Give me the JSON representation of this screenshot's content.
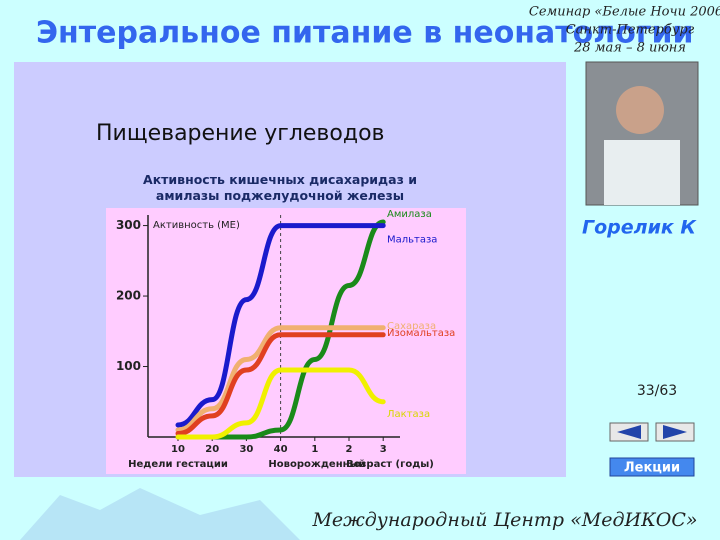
{
  "slide": {
    "title": "Энтеральное питание в неонатологии",
    "seminar": [
      "Семинар «Белые Ночи 2006»",
      "Санкт-Петербург",
      "28 мая – 8 июня"
    ],
    "heading": "Пищеварение углеводов",
    "speaker": "Горелик К",
    "page": "33/63",
    "lectures": "Лекции",
    "footer": "Международный Центр «МедИКОС»"
  },
  "chart_data": {
    "type": "line",
    "title": "Активность кишечных дисахаридаз и амилазы поджелудочной железы",
    "ylabel": "Активность (МЕ)",
    "xlabels": [
      "Недели гестации",
      "Новорожденный",
      "Возраст (годы)"
    ],
    "categories": [
      "10",
      "20",
      "30",
      "40",
      "1",
      "2",
      "3"
    ],
    "ylim": [
      0,
      315
    ],
    "yticks": [
      100,
      200,
      300
    ],
    "series": [
      {
        "name": "Амилаза",
        "color": "#1a8a1a",
        "values": [
          0,
          0,
          0,
          10,
          110,
          215,
          305
        ]
      },
      {
        "name": "Мальтаза",
        "color": "#1a1acc",
        "values": [
          17,
          53,
          195,
          300,
          300,
          300,
          300
        ]
      },
      {
        "name": "Сахараза",
        "color": "#f0b070",
        "values": [
          10,
          40,
          110,
          155,
          155,
          155,
          155
        ]
      },
      {
        "name": "Изомальтаза",
        "color": "#e04020",
        "values": [
          5,
          30,
          95,
          145,
          145,
          145,
          145
        ]
      },
      {
        "name": "Лактаза",
        "color": "#f0f000",
        "values": [
          0,
          0,
          20,
          95,
          95,
          95,
          50
        ]
      }
    ]
  }
}
